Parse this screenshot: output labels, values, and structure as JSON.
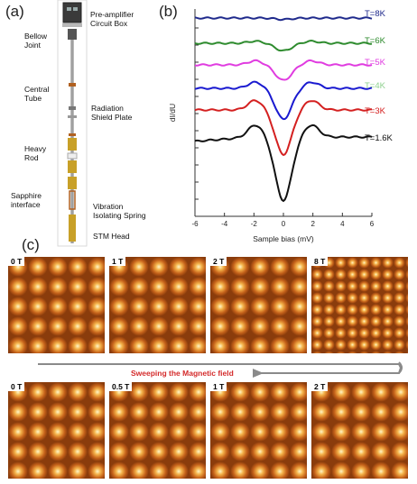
{
  "panel_a": {
    "label": "(a)",
    "annotations": [
      {
        "key": "preamp",
        "text": "Pre-amplifier\nCircuit Box"
      },
      {
        "key": "bellow",
        "text": "Bellow\nJoint"
      },
      {
        "key": "central",
        "text": "Central\nTube"
      },
      {
        "key": "radiation",
        "text": "Radiation\nShield Plate"
      },
      {
        "key": "heavy",
        "text": "Heavy\nRod"
      },
      {
        "key": "sapphire",
        "text": "Sapphire\ninterface"
      },
      {
        "key": "vibration",
        "text": "Vibration\nIsolating Spring"
      },
      {
        "key": "stm",
        "text": "STM Head"
      }
    ]
  },
  "panel_b": {
    "label": "(b)",
    "chart_data": {
      "type": "line",
      "xlabel": "Sample bias (mV)",
      "ylabel": "dI/dU",
      "xlim": [
        -6,
        6
      ],
      "xticks": [
        "-6",
        "-4",
        "-2",
        "0",
        "2",
        "4",
        "6"
      ],
      "series": [
        {
          "name": "T=8K",
          "color": "#1f2a8c",
          "offset": 0.0,
          "depth": 0.04,
          "peak": 0.0
        },
        {
          "name": "T=6K",
          "color": "#2e8b2e",
          "offset": 1.0,
          "depth": 0.22,
          "peak": 0.06
        },
        {
          "name": "T=5K",
          "color": "#e03ce0",
          "offset": 2.0,
          "depth": 0.45,
          "peak": 0.12
        },
        {
          "name": "T=4K",
          "color": "#8fd18f",
          "offset": 3.0,
          "depth": 0.0,
          "peak": 0.0
        },
        {
          "name": "T=4K",
          "color": "#1a1ad0",
          "offset": 3.0,
          "depth": 0.9,
          "peak": 0.18
        },
        {
          "name": "T=3K",
          "color": "#d42020",
          "offset": 4.0,
          "depth": 1.3,
          "peak": 0.28
        },
        {
          "name": "T=1.6K",
          "color": "#111111",
          "offset": 5.2,
          "depth": 1.85,
          "peak": 0.35
        }
      ]
    }
  },
  "panel_c": {
    "label": "(c)",
    "top_row": [
      "0 T",
      "1 T",
      "2 T",
      "8 T"
    ],
    "bottom_row": [
      "0 T",
      "0.5 T",
      "1 T",
      "2 T"
    ],
    "sweep_text": "Sweeping the Magnetic field"
  }
}
